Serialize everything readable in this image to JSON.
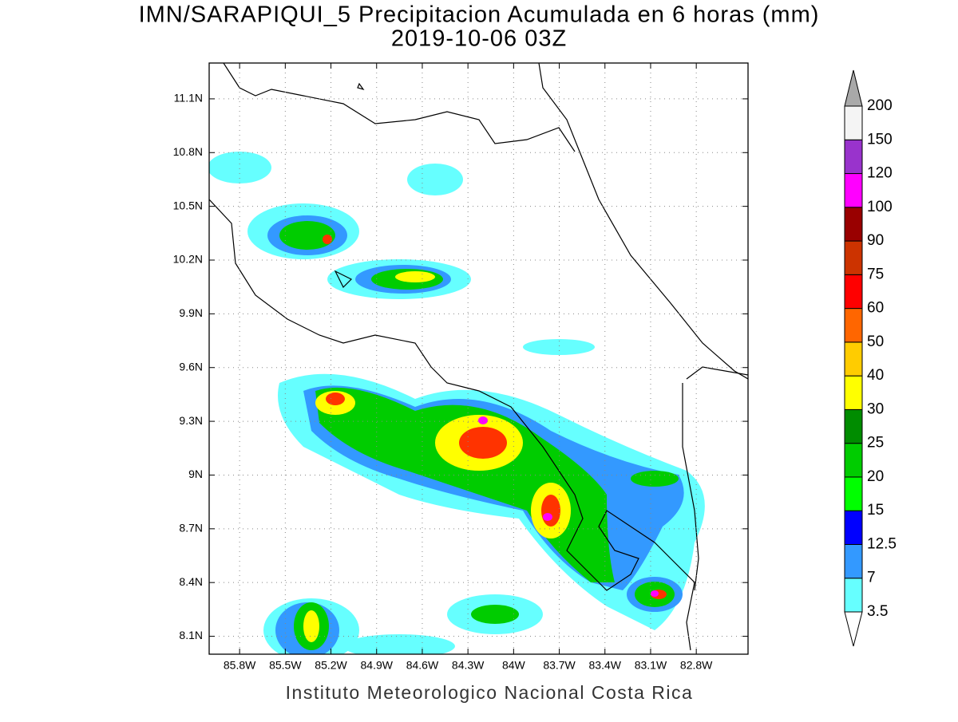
{
  "title": "IMN/SARAPIQUI_5 Precipitacion Acumulada en 6 horas (mm)",
  "subtitle": "2019-10-06 03Z",
  "map": {
    "lon_range": [
      -86.0,
      -82.46
    ],
    "lat_range": [
      8.0,
      11.3
    ],
    "lat_ticks": [
      {
        "value": 11.1,
        "label": "11.1N"
      },
      {
        "value": 10.8,
        "label": "10.8N"
      },
      {
        "value": 10.5,
        "label": "10.5N"
      },
      {
        "value": 10.2,
        "label": "10.2N"
      },
      {
        "value": 9.9,
        "label": "9.9N"
      },
      {
        "value": 9.6,
        "label": "9.6N"
      },
      {
        "value": 9.3,
        "label": "9.3N"
      },
      {
        "value": 9,
        "label": "9N"
      },
      {
        "value": 8.7,
        "label": "8.7N"
      },
      {
        "value": 8.4,
        "label": "8.4N"
      },
      {
        "value": 8.1,
        "label": "8.1N"
      }
    ],
    "lon_ticks": [
      {
        "value": -85.8,
        "label": "85.8W"
      },
      {
        "value": -85.5,
        "label": "85.5W"
      },
      {
        "value": -85.2,
        "label": "85.2W"
      },
      {
        "value": -84.9,
        "label": "84.9W"
      },
      {
        "value": -84.6,
        "label": "84.6W"
      },
      {
        "value": -84.3,
        "label": "84.3W"
      },
      {
        "value": -84,
        "label": "84W"
      },
      {
        "value": -83.7,
        "label": "83.7W"
      },
      {
        "value": -83.4,
        "label": "83.4W"
      },
      {
        "value": -83.1,
        "label": "83.1W"
      },
      {
        "value": -82.8,
        "label": "82.8W"
      }
    ],
    "grid": true
  },
  "colorbar": {
    "levels": [
      3.5,
      7,
      12.5,
      15,
      20,
      25,
      30,
      40,
      50,
      60,
      75,
      90,
      100,
      120,
      150,
      200
    ],
    "colors": [
      "#66ffff",
      "#3399ff",
      "#0000ff",
      "#00ff00",
      "#00cc00",
      "#008c00",
      "#ffff00",
      "#ffcc00",
      "#ff6600",
      "#ff0000",
      "#cc3300",
      "#990000",
      "#ff00ff",
      "#9933cc",
      "#f4f4f4"
    ],
    "under_color": "#ffffff",
    "over_color": "#a9a9a9"
  },
  "footer": "Instituto Meteorologico Nacional Costa Rica"
}
